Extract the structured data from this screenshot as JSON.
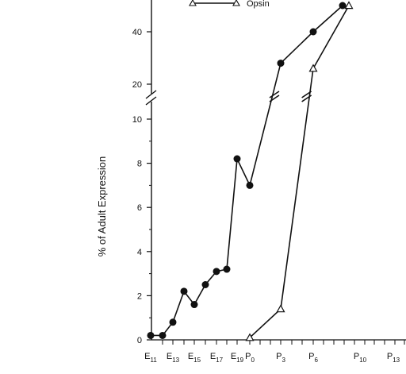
{
  "chart_data": {
    "type": "line",
    "ylabel": "% of Adult Expression",
    "y_axis": {
      "broken": true,
      "lower_segment": {
        "range": [
          0,
          10
        ],
        "ticks": [
          0,
          2,
          4,
          6,
          8,
          10
        ]
      },
      "upper_segment": {
        "range": [
          20,
          50
        ],
        "ticks": [
          20,
          40
        ]
      }
    },
    "x_ticks": [
      {
        "main": "E",
        "sub": "11"
      },
      {
        "main": "E",
        "sub": "13"
      },
      {
        "main": "E",
        "sub": "15"
      },
      {
        "main": "E",
        "sub": "17"
      },
      {
        "main": "E",
        "sub": "19"
      },
      {
        "main": "P",
        "sub": "0"
      },
      {
        "main": "P",
        "sub": "3"
      },
      {
        "main": "P",
        "sub": "6"
      },
      {
        "main": "P",
        "sub": "10"
      },
      {
        "main": "P",
        "sub": "13"
      }
    ],
    "series": [
      {
        "marker": "filled-circle",
        "color": "#111111",
        "points": [
          {
            "x": "E11",
            "y": 0.2
          },
          {
            "x": "E12",
            "y": 0.2
          },
          {
            "x": "E13",
            "y": 0.8
          },
          {
            "x": "E14",
            "y": 2.2
          },
          {
            "x": "E15",
            "y": 1.6
          },
          {
            "x": "E16",
            "y": 2.5
          },
          {
            "x": "E17",
            "y": 3.1
          },
          {
            "x": "E18",
            "y": 3.2
          },
          {
            "x": "E19",
            "y": 8.2
          },
          {
            "x": "P0",
            "y": 7.0
          },
          {
            "x": "P3",
            "y": 28
          },
          {
            "x": "P6",
            "y": 40
          },
          {
            "x": "P8",
            "y": 50
          }
        ]
      },
      {
        "name": "Opsin",
        "marker": "open-triangle",
        "color": "#111111",
        "points": [
          {
            "x": "P0",
            "y": 0.1
          },
          {
            "x": "P3",
            "y": 1.4
          },
          {
            "x": "P6",
            "y": 26
          },
          {
            "x": "P9",
            "y": 50
          }
        ]
      }
    ],
    "legend": {
      "placement": "top-left",
      "entries": [
        "Opsin"
      ]
    }
  }
}
